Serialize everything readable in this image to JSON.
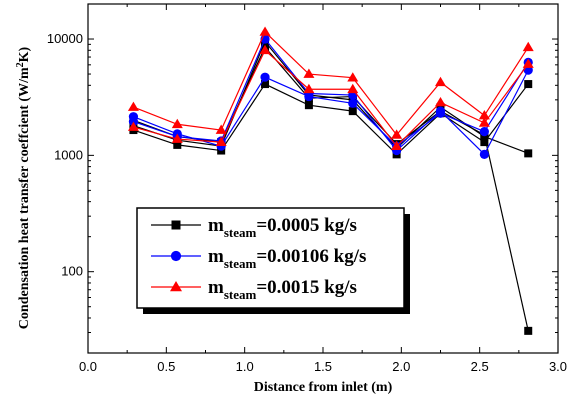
{
  "chart_data": {
    "type": "line",
    "xlabel": "Distance from inlet (m)",
    "ylabel_main": "Condensation heat transfer coeffcient (W/m",
    "ylabel_sup": "2",
    "ylabel_end": "K)",
    "xlim": [
      0.0,
      3.0
    ],
    "ylim": [
      20,
      20000
    ],
    "yscale": "log",
    "x_ticks": [
      "0.0",
      "0.5",
      "1.0",
      "1.5",
      "2.0",
      "2.5",
      "3.0"
    ],
    "y_ticks": [
      "100",
      "1000",
      "10000"
    ],
    "legend_placement": "lower-left",
    "series": [
      {
        "color": "#000000",
        "marker": "square",
        "legend_main": "m",
        "legend_sub": "steam",
        "legend_rest": "=0.0005 kg/s",
        "lines": [
          {
            "x": [
              0.29,
              0.57,
              0.85,
              1.13,
              1.41,
              1.69,
              1.97,
              2.25,
              2.53,
              2.81
            ],
            "y": [
              1650,
              1230,
              1100,
              4100,
              2700,
              2400,
              1020,
              2300,
              1300,
              4100
            ]
          },
          {
            "x": [
              0.29,
              0.57,
              0.85,
              1.13,
              1.41,
              1.69,
              1.97,
              2.25,
              2.53,
              2.81
            ],
            "y": [
              1800,
              1350,
              1200,
              9500,
              3300,
              3000,
              1150,
              2600,
              1450,
              1040
            ]
          },
          {
            "x": [
              0.29,
              0.57,
              0.85,
              1.13,
              1.41,
              1.69,
              1.97,
              2.25,
              2.53,
              2.81
            ],
            "y": [
              2000,
              1450,
              1300,
              8500,
              3100,
              3200,
              1250,
              2400,
              1500,
              31
            ]
          }
        ]
      },
      {
        "color": "#0000ff",
        "marker": "circle",
        "legend_main": "m",
        "legend_sub": "steam",
        "legend_rest": "=0.00106 kg/s",
        "lines": [
          {
            "x": [
              0.29,
              0.57,
              0.85,
              1.13,
              1.41,
              1.69,
              1.97,
              2.25,
              2.53,
              2.81
            ],
            "y": [
              2150,
              1530,
              1200,
              4700,
              3200,
              2800,
              1200,
              2300,
              1600,
              6300
            ]
          },
          {
            "x": [
              0.29,
              0.57,
              0.85,
              1.13,
              1.41,
              1.69,
              1.97,
              2.25,
              2.53,
              2.81
            ],
            "y": [
              1950,
              1450,
              1330,
              10000,
              3400,
              3300,
              1100,
              2400,
              1020,
              5400
            ]
          }
        ]
      },
      {
        "color": "#ff0000",
        "marker": "triangle",
        "legend_main": "m",
        "legend_sub": "steam",
        "legend_rest": "=0.0015 kg/s",
        "lines": [
          {
            "x": [
              0.29,
              0.57,
              0.85,
              1.13,
              1.41,
              1.69,
              1.97,
              2.25,
              2.53,
              2.81
            ],
            "y": [
              2600,
              1850,
              1650,
              11500,
              5000,
              4650,
              1500,
              4250,
              2200,
              8500
            ]
          },
          {
            "x": [
              0.29,
              0.57,
              0.85,
              1.13,
              1.41,
              1.69,
              1.97,
              2.25,
              2.53,
              2.81
            ],
            "y": [
              1750,
              1380,
              1300,
              8000,
              3700,
              3700,
              1200,
              2850,
              1900,
              6100
            ]
          }
        ]
      }
    ]
  }
}
